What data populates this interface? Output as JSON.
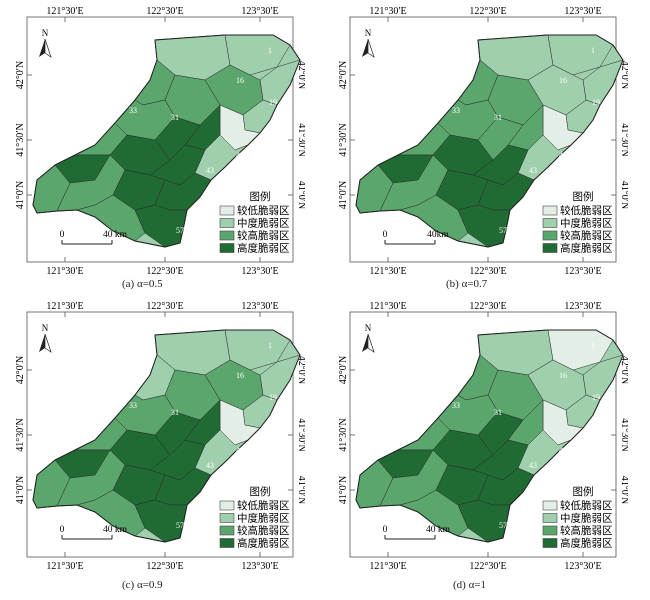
{
  "figure": {
    "panels": [
      {
        "id": "a",
        "caption": "(a) α=0.5",
        "scalebar": {
          "start": "0",
          "end": "40 km"
        }
      },
      {
        "id": "b",
        "caption": "(b) α=0.7",
        "scalebar": {
          "start": "0",
          "end": "40km"
        }
      },
      {
        "id": "c",
        "caption": "(c) α=0.9",
        "scalebar": {
          "start": "0",
          "end": "40 km"
        }
      },
      {
        "id": "d",
        "caption": "(d) α=1",
        "scalebar": {
          "start": "0",
          "end": "40 km"
        }
      }
    ],
    "lon_ticks": [
      "121°30′E",
      "122°30′E",
      "123°30′E"
    ],
    "lat_ticks": [
      "42°0′N",
      "41°30′N",
      "41°0′N"
    ],
    "north_label": "N",
    "legend": {
      "title": "图例",
      "items": [
        {
          "label": "较低脆弱区",
          "color": "#e3efe6"
        },
        {
          "label": "中度脆弱区",
          "color": "#9fcfac"
        },
        {
          "label": "较高脆弱区",
          "color": "#5aa66c"
        },
        {
          "label": "高度脆弱区",
          "color": "#1f6b33"
        }
      ]
    },
    "region_labels": [
      "1",
      "16",
      "19",
      "29",
      "31",
      "33",
      "41",
      "43",
      "53",
      "57"
    ]
  }
}
